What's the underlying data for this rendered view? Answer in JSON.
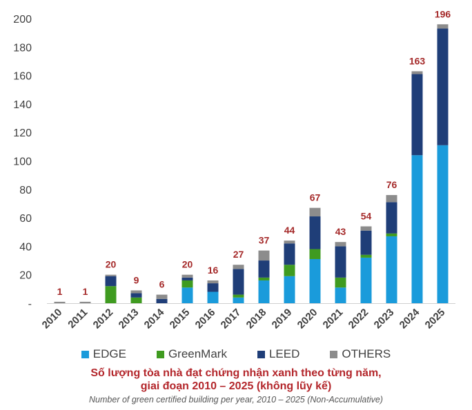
{
  "chart_data": {
    "type": "bar",
    "stacked": true,
    "categories": [
      "2010",
      "2011",
      "2012",
      "2013",
      "2014",
      "2015",
      "2016",
      "2017",
      "2018",
      "2019",
      "2020",
      "2021",
      "2022",
      "2023",
      "2024",
      "2025"
    ],
    "series": [
      {
        "name": "EDGE",
        "color": "#1a9bdb",
        "values": [
          0,
          0,
          0,
          0,
          0,
          11,
          8,
          4,
          16,
          19,
          31,
          11,
          32,
          47,
          104,
          111
        ]
      },
      {
        "name": "GreenMark",
        "color": "#3f9b20",
        "values": [
          0,
          0,
          12,
          4,
          0,
          5,
          0,
          2,
          2,
          8,
          7,
          7,
          2,
          2,
          0,
          0
        ]
      },
      {
        "name": "LEED",
        "color": "#1f3e78",
        "values": [
          0,
          0,
          7,
          3,
          3,
          2,
          6,
          18,
          12,
          15,
          23,
          22,
          17,
          22,
          57,
          82
        ]
      },
      {
        "name": "OTHERS",
        "color": "#8c8c8c",
        "values": [
          1,
          1,
          1,
          2,
          3,
          2,
          2,
          3,
          7,
          2,
          6,
          3,
          3,
          5,
          2,
          3
        ]
      }
    ],
    "totals": [
      1,
      1,
      20,
      9,
      6,
      20,
      16,
      27,
      37,
      44,
      67,
      43,
      54,
      76,
      163,
      196
    ],
    "yticks": [
      "200",
      "180",
      "160",
      "140",
      "120",
      "100",
      "80",
      "60",
      "40",
      "20",
      "-"
    ],
    "ylim": [
      0,
      200
    ],
    "legend_position": "bottom",
    "title_line1": "Số lượng tòa nhà đạt chứng nhận xanh theo từng năm,",
    "title_line2": "giai đoạn 2010 – 2025 (không lũy kế)",
    "subtitle": "Number of green certified building per year, 2010 – 2025 (Non-Accumulative)"
  }
}
